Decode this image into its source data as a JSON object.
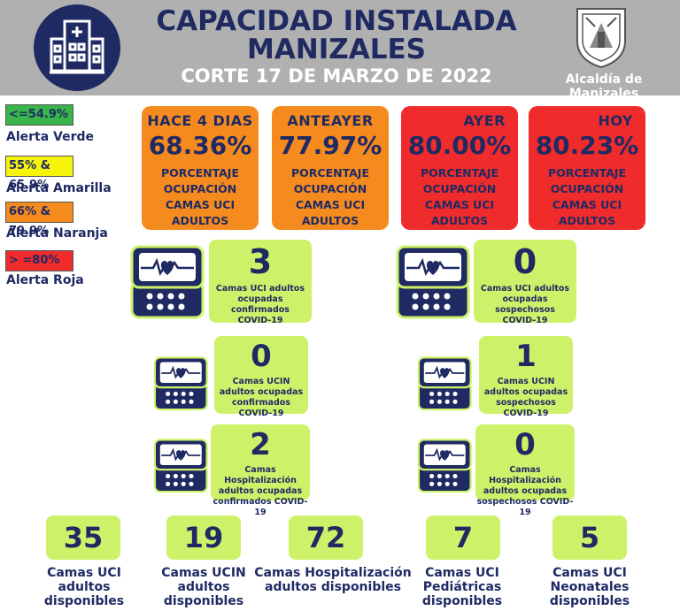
{
  "header": {
    "title_line1": "CAPACIDAD INSTALADA",
    "title_line2": "MANIZALES",
    "subtitle": "CORTE 17 DE MARZO DE 2022",
    "alcaldia": "Alcaldía de Manizales",
    "logo_icon": "hospital-icon",
    "shield_icon": "coat-of-arms-icon"
  },
  "legend": [
    {
      "range": "<=54.9%",
      "label": "Alerta Verde",
      "color": "#39b54a"
    },
    {
      "range": "55% & 65.9%",
      "label": "Alerta Amarilla",
      "color": "#f7f40c"
    },
    {
      "range": "66% & 79.9%",
      "label": "Alerta Naranja",
      "color": "#f58a1f"
    },
    {
      "range": "> =80%",
      "label": "Alerta Roja",
      "color": "#ef2b2b"
    }
  ],
  "occupancy": [
    {
      "period": "HACE 4 DIAS",
      "value": "68.36%",
      "desc": [
        "PORCENTAJE",
        "OCUPACIÓN",
        "CAMAS UCI",
        "ADULTOS"
      ],
      "color": "#f58a1f"
    },
    {
      "period": "ANTEAYER",
      "value": "77.97%",
      "desc": [
        "PORCENTAJE",
        "OCUPACIÓN",
        "CAMAS UCI",
        "ADULTOS"
      ],
      "color": "#f58a1f"
    },
    {
      "period": "AYER",
      "value": "80.00%",
      "desc": [
        "PORCENTAJE",
        "OCUPACIÓN",
        "CAMAS UCI",
        "ADULTOS"
      ],
      "color": "#ef2b2b"
    },
    {
      "period": "HOY",
      "value": "80.23%",
      "desc": [
        "PORCENTAJE",
        "OCUPACIÓN",
        "CAMAS UCI",
        "ADULTOS"
      ],
      "color": "#ef2b2b"
    }
  ],
  "stats": {
    "uci_conf": {
      "value": "3",
      "text": [
        "Camas UCI adultos",
        "ocupadas confirmados",
        "COVID-19"
      ]
    },
    "uci_sosp": {
      "value": "0",
      "text": [
        "Camas UCI adultos",
        "ocupadas sospechosos",
        "COVID-19"
      ]
    },
    "ucin_conf": {
      "value": "0",
      "text": [
        "Camas  UCIN",
        "adultos ocupadas",
        "confirmados COVID-19"
      ]
    },
    "ucin_sosp": {
      "value": "1",
      "text": [
        "Camas  UCIN",
        "adultos ocupadas",
        "sospechosos COVID-19"
      ]
    },
    "hosp_conf": {
      "value": "2",
      "text": [
        "Camas  Hospitalización",
        "adultos ocupadas",
        "confirmados COVID-19"
      ]
    },
    "hosp_sosp": {
      "value": "0",
      "text": [
        "Camas  Hospitalización",
        "adultos ocupadas",
        "sospechosos COVID-19"
      ]
    }
  },
  "available": [
    {
      "value": "35",
      "label": [
        "Camas UCI",
        "adultos",
        "disponibles"
      ]
    },
    {
      "value": "19",
      "label": [
        "Camas UCIN",
        "adultos",
        "disponibles"
      ]
    },
    {
      "value": "72",
      "label": [
        "Camas  Hospitalización",
        "adultos disponibles"
      ]
    },
    {
      "value": "7",
      "label": [
        "Camas  UCI",
        "Pediátricas",
        "disponibles"
      ]
    },
    {
      "value": "5",
      "label": [
        "Camas  UCI",
        "Neonatales",
        "disponibles"
      ]
    }
  ],
  "icons": {
    "monitor": "heart-monitor-icon"
  }
}
